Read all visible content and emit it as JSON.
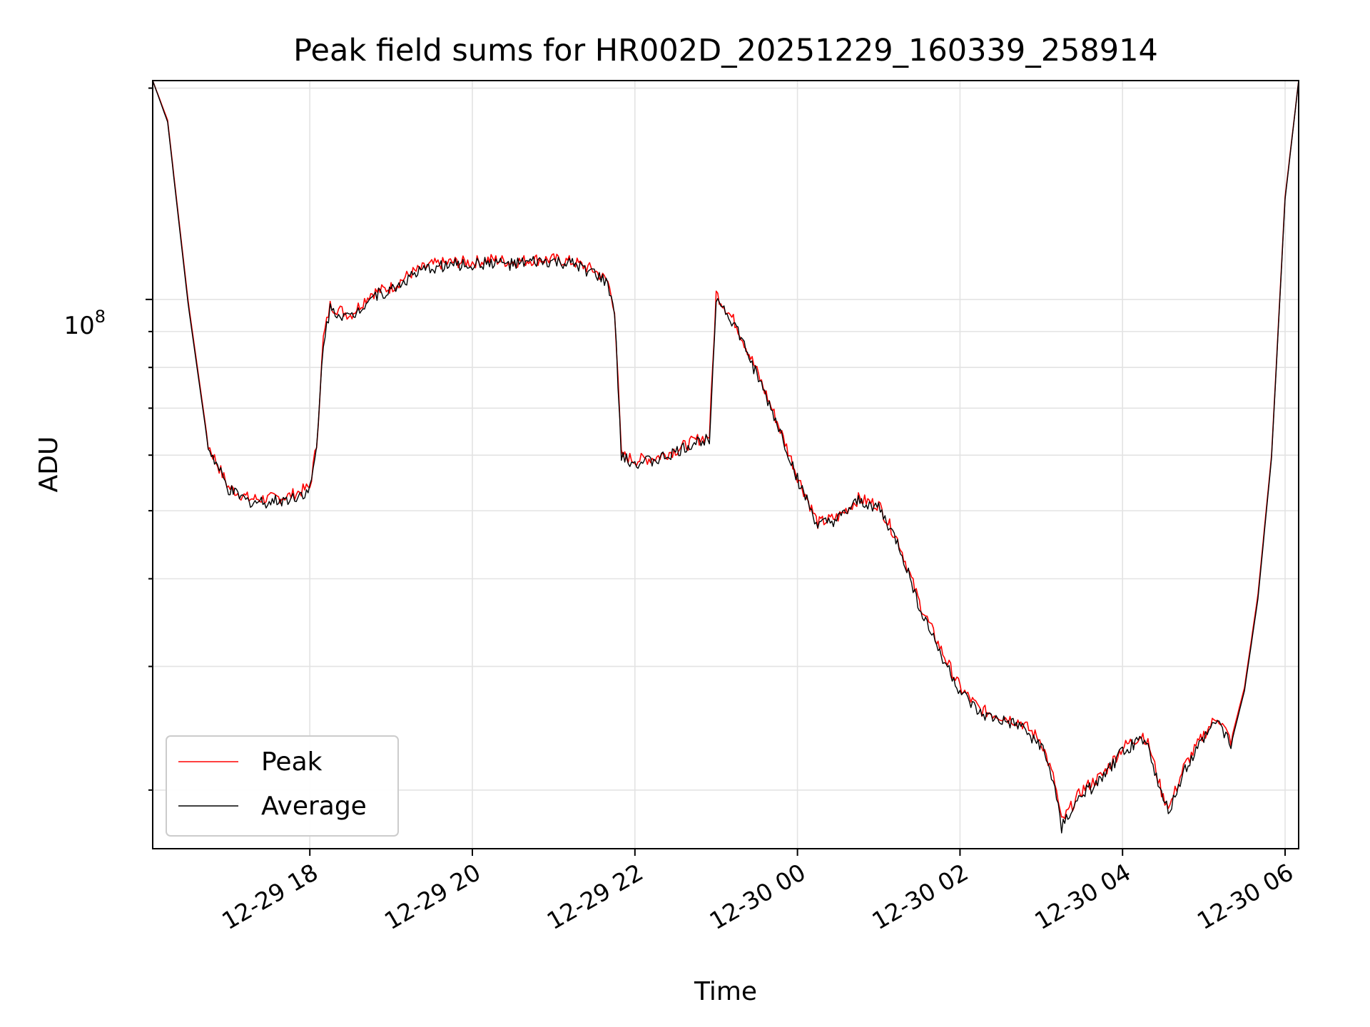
{
  "chart_data": {
    "type": "line",
    "title": "Peak field sums for HR002D_20251229_160339_258914",
    "xlabel": "Time",
    "ylabel": "ADU",
    "y_scale": "log",
    "ylim": [
      16500000,
      205000000
    ],
    "xlim": [
      "12-29 16:04",
      "12-30 06:10"
    ],
    "x_ticks": [
      "12-29 18",
      "12-29 20",
      "12-29 22",
      "12-30 00",
      "12-30 02",
      "12-30 04",
      "12-30 06"
    ],
    "x_tick_times": [
      "12-29 18:00",
      "12-29 20:00",
      "12-29 22:00",
      "12-30 00:00",
      "12-30 02:00",
      "12-30 04:00",
      "12-30 06:00"
    ],
    "y_ticks": [
      "10^8"
    ],
    "grid": true,
    "legend_position": "lower-left",
    "series": [
      {
        "name": "Peak",
        "color": "#ff0000",
        "x": [
          "12-29 16:04",
          "12-29 16:15",
          "12-29 16:30",
          "12-29 16:45",
          "12-29 17:00",
          "12-29 17:15",
          "12-29 17:30",
          "12-29 17:45",
          "12-29 17:55",
          "12-29 18:00",
          "12-29 18:05",
          "12-29 18:10",
          "12-29 18:15",
          "12-29 18:20",
          "12-29 18:30",
          "12-29 18:45",
          "12-29 19:00",
          "12-29 19:15",
          "12-29 19:30",
          "12-29 19:45",
          "12-29 20:00",
          "12-29 20:15",
          "12-29 20:30",
          "12-29 20:45",
          "12-29 21:00",
          "12-29 21:15",
          "12-29 21:30",
          "12-29 21:40",
          "12-29 21:45",
          "12-29 21:50",
          "12-29 22:00",
          "12-29 22:15",
          "12-29 22:30",
          "12-29 22:45",
          "12-29 22:55",
          "12-29 23:00",
          "12-29 23:15",
          "12-29 23:30",
          "12-29 23:45",
          "12-30 00:00",
          "12-30 00:15",
          "12-30 00:30",
          "12-30 00:45",
          "12-30 01:00",
          "12-30 01:15",
          "12-30 01:30",
          "12-30 01:45",
          "12-30 02:00",
          "12-30 02:15",
          "12-30 02:30",
          "12-30 02:45",
          "12-30 03:00",
          "12-30 03:10",
          "12-30 03:15",
          "12-30 03:30",
          "12-30 03:45",
          "12-30 04:00",
          "12-30 04:15",
          "12-30 04:20",
          "12-30 04:30",
          "12-30 04:35",
          "12-30 04:45",
          "12-30 05:00",
          "12-30 05:10",
          "12-30 05:20",
          "12-30 05:30",
          "12-30 05:40",
          "12-30 05:50",
          "12-30 06:00",
          "12-30 06:10"
        ],
        "y": [
          205000000,
          180000000,
          100000000,
          62000000,
          54000000,
          52000000,
          52000000,
          52500000,
          53500000,
          54000000,
          62000000,
          88000000,
          98000000,
          97000000,
          95000000,
          102000000,
          104000000,
          109000000,
          112000000,
          113000000,
          113000000,
          114000000,
          113000000,
          114000000,
          114000000,
          113000000,
          110000000,
          106000000,
          97000000,
          60000000,
          59000000,
          59500000,
          61000000,
          63000000,
          64000000,
          102000000,
          92000000,
          79000000,
          67000000,
          56000000,
          48000000,
          49000000,
          52000000,
          51000000,
          45000000,
          37000000,
          32000000,
          28000000,
          26000000,
          25500000,
          25000000,
          23500000,
          20500000,
          18000000,
          20000000,
          21000000,
          23000000,
          24000000,
          23000000,
          19500000,
          19000000,
          21500000,
          24000000,
          25500000,
          23500000,
          28000000,
          38000000,
          60000000,
          140000000,
          205000000
        ]
      },
      {
        "name": "Average",
        "color": "#000000",
        "x": [
          "12-29 16:04",
          "12-29 16:15",
          "12-29 16:30",
          "12-29 16:45",
          "12-29 17:00",
          "12-29 17:15",
          "12-29 17:30",
          "12-29 17:45",
          "12-29 17:55",
          "12-29 18:00",
          "12-29 18:05",
          "12-29 18:10",
          "12-29 18:15",
          "12-29 18:20",
          "12-29 18:30",
          "12-29 18:45",
          "12-29 19:00",
          "12-29 19:15",
          "12-29 19:30",
          "12-29 19:45",
          "12-29 20:00",
          "12-29 20:15",
          "12-29 20:30",
          "12-29 20:45",
          "12-29 21:00",
          "12-29 21:15",
          "12-29 21:30",
          "12-29 21:40",
          "12-29 21:45",
          "12-29 21:50",
          "12-29 22:00",
          "12-29 22:15",
          "12-29 22:30",
          "12-29 22:45",
          "12-29 22:55",
          "12-29 23:00",
          "12-29 23:15",
          "12-29 23:30",
          "12-29 23:45",
          "12-30 00:00",
          "12-30 00:15",
          "12-30 00:30",
          "12-30 00:45",
          "12-30 01:00",
          "12-30 01:15",
          "12-30 01:30",
          "12-30 01:45",
          "12-30 02:00",
          "12-30 02:15",
          "12-30 02:30",
          "12-30 02:45",
          "12-30 03:00",
          "12-30 03:10",
          "12-30 03:15",
          "12-30 03:30",
          "12-30 03:45",
          "12-30 04:00",
          "12-30 04:15",
          "12-30 04:20",
          "12-30 04:30",
          "12-30 04:35",
          "12-30 04:45",
          "12-30 05:00",
          "12-30 05:10",
          "12-30 05:20",
          "12-30 05:30",
          "12-30 05:40",
          "12-30 05:50",
          "12-30 06:00",
          "12-30 06:10"
        ],
        "y": [
          205000000,
          179000000,
          99000000,
          61500000,
          53500000,
          51500000,
          51500000,
          52000000,
          53000000,
          53500000,
          61000000,
          87000000,
          97000000,
          96000000,
          94000000,
          101000000,
          103000000,
          108000000,
          111000000,
          112000000,
          112000000,
          113000000,
          112000000,
          113000000,
          113000000,
          112000000,
          109000000,
          105000000,
          96000000,
          59500000,
          58500000,
          59000000,
          60500000,
          62500000,
          63500000,
          101000000,
          91000000,
          78000000,
          66500000,
          55500000,
          47500000,
          48500000,
          51500000,
          50500000,
          44500000,
          36500000,
          31500000,
          27600000,
          25600000,
          25100000,
          24600000,
          23100000,
          20200000,
          17700000,
          19700000,
          20700000,
          22700000,
          23700000,
          22700000,
          19200000,
          18700000,
          21200000,
          23700000,
          25200000,
          23200000,
          27700000,
          37500000,
          59500000,
          139000000,
          205000000
        ]
      }
    ]
  }
}
